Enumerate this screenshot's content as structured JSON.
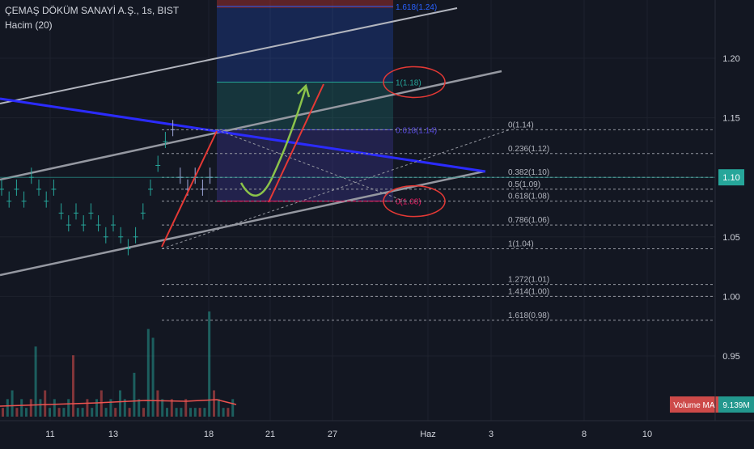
{
  "header": {
    "symbol_line": "ÇEMAŞ DÖKÜM SANAYİ A.Ş., 1s, BIST",
    "indicator_line": "Hacim (20)"
  },
  "chart_data": {
    "type": "candlestick",
    "ylim": [
      0.89,
      1.245
    ],
    "y_ticks": [
      "1.20",
      "1.15",
      "1.10",
      "1.05",
      "1.00",
      "0.95"
    ],
    "x_ticks": [
      "11",
      "13",
      "18",
      "21",
      "27",
      "Haz",
      "3",
      "8",
      "10"
    ],
    "last_price": "1.10",
    "volume_ma_label": "Volume MA",
    "volume_ma_value": "9.139M",
    "fib_retracement": [
      {
        "label": "0(1.14)",
        "value": 1.14
      },
      {
        "label": "0.236(1.12)",
        "value": 1.12
      },
      {
        "label": "0.382(1.10)",
        "value": 1.1
      },
      {
        "label": "0.5(1.09)",
        "value": 1.09
      },
      {
        "label": "0.618(1.08)",
        "value": 1.08
      },
      {
        "label": "0.786(1.06)",
        "value": 1.06
      },
      {
        "label": "1(1.04)",
        "value": 1.04
      },
      {
        "label": "1.272(1.01)",
        "value": 1.01
      },
      {
        "label": "1.414(1.00)",
        "value": 1.0
      },
      {
        "label": "1.618(0.98)",
        "value": 0.98
      }
    ],
    "target_levels": [
      {
        "label": "1.618(1.24)",
        "value": 1.24,
        "color": "#2962ff"
      },
      {
        "label": "1(1.18)",
        "value": 1.18,
        "color": "#26a69a"
      },
      {
        "label": "0.618(1.14)",
        "value": 1.14,
        "color": "#5c4ee5"
      },
      {
        "label": "0(1.08)",
        "value": 1.08,
        "color": "#e91e63"
      }
    ],
    "price_series": [
      1.09,
      1.08,
      1.09,
      1.08,
      1.1,
      1.09,
      1.08,
      1.09,
      1.07,
      1.06,
      1.07,
      1.06,
      1.07,
      1.06,
      1.05,
      1.06,
      1.05,
      1.04,
      1.05,
      1.07,
      1.09,
      1.11,
      1.13,
      1.14,
      1.1,
      1.09,
      1.1,
      1.09,
      1.1
    ],
    "volume_series": [
      1,
      2,
      3,
      1,
      2,
      1,
      2,
      8,
      2,
      3,
      1,
      2,
      1,
      1,
      2,
      7,
      1,
      1,
      2,
      1,
      2,
      3,
      1,
      2,
      1,
      3,
      2,
      1,
      5,
      2,
      1,
      10,
      9,
      3,
      2,
      1,
      2,
      1,
      1,
      2,
      1,
      1,
      1,
      1,
      12,
      3,
      2,
      1,
      1,
      2
    ],
    "highlight_colors": {
      "red": "#e53935",
      "green": "#8bc34a",
      "blue": "#2b2bff",
      "channel": "#9598a1"
    }
  }
}
